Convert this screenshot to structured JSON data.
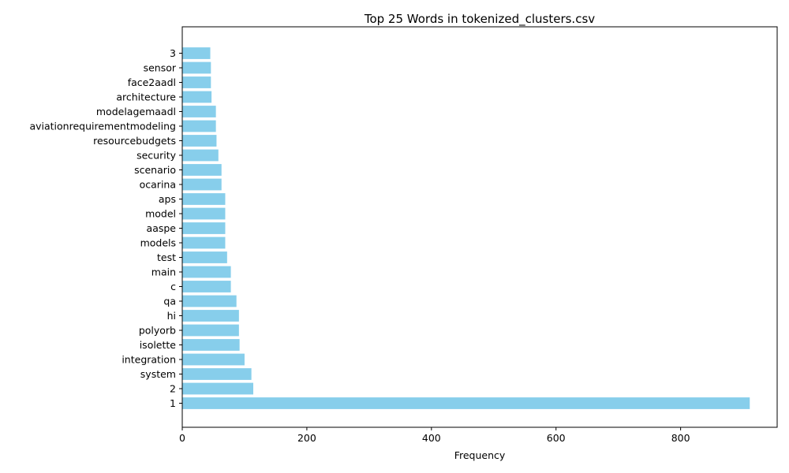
{
  "chart_data": {
    "type": "bar",
    "orientation": "horizontal",
    "title": "Top 25 Words in tokenized_clusters.csv",
    "xlabel": "Frequency",
    "ylabel": "",
    "xlim": [
      0,
      955
    ],
    "xticks": [
      0,
      200,
      400,
      600,
      800
    ],
    "grid": false,
    "bar_color": "#87ceeb",
    "categories": [
      "1",
      "2",
      "system",
      "integration",
      "isolette",
      "polyorb",
      "hi",
      "qa",
      "c",
      "main",
      "test",
      "models",
      "aaspe",
      "model",
      "aps",
      "ocarina",
      "scenario",
      "security",
      "resourcebudgets",
      "aviationrequirementmodeling",
      "modelagemaadl",
      "architecture",
      "face2aadl",
      "sensor",
      "3"
    ],
    "values": [
      911,
      114,
      111,
      100,
      92,
      91,
      91,
      87,
      78,
      78,
      72,
      69,
      69,
      69,
      69,
      63,
      63,
      58,
      55,
      54,
      54,
      47,
      46,
      46,
      45
    ]
  }
}
